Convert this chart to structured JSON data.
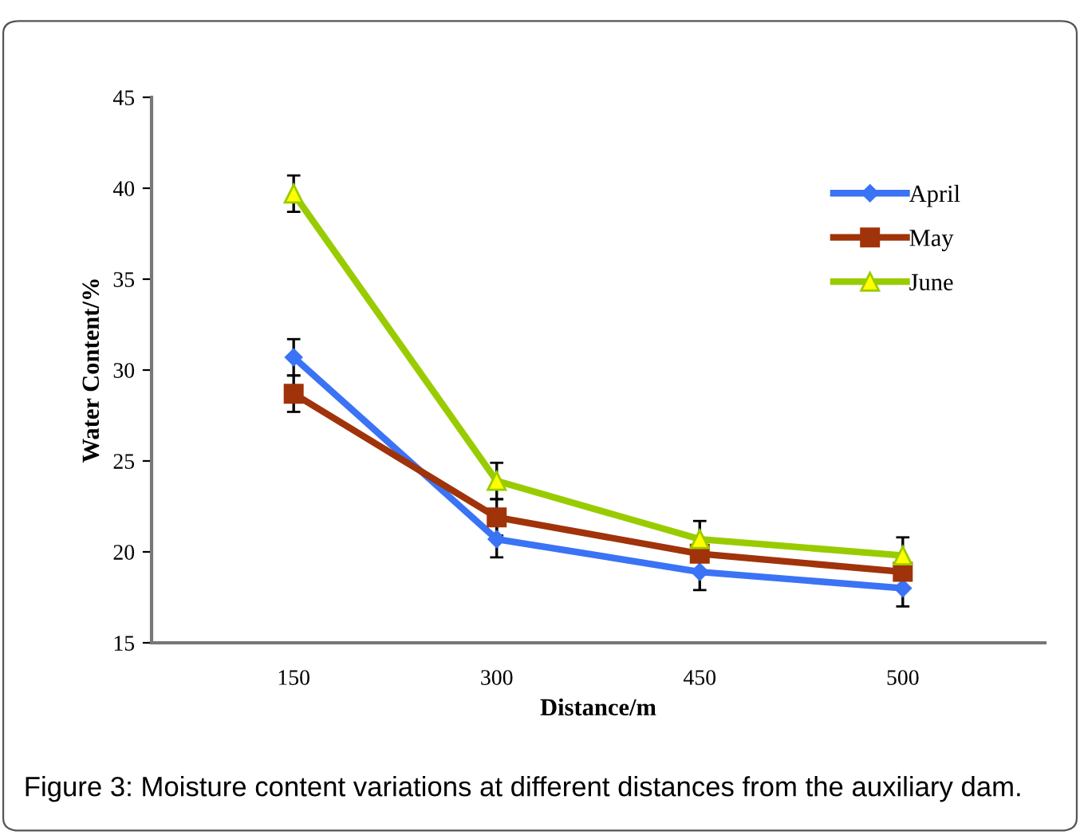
{
  "chart_data": {
    "type": "line",
    "xlabel": "Distance/m",
    "ylabel": "Water Content/%",
    "categories": [
      "150",
      "300",
      "450",
      "500"
    ],
    "series": [
      {
        "name": "April",
        "color": "#3b73f5",
        "marker": "diamond",
        "values": [
          30.7,
          20.7,
          18.9,
          18.0
        ],
        "errors": [
          1,
          1,
          1,
          1
        ]
      },
      {
        "name": "May",
        "color": "#a0330a",
        "marker": "square",
        "values": [
          28.7,
          21.9,
          19.9,
          18.9
        ],
        "errors": [
          1,
          1,
          null,
          null
        ]
      },
      {
        "name": "June",
        "color": "#99cc00",
        "marker": "triangle",
        "values": [
          39.7,
          23.9,
          20.7,
          19.8
        ],
        "errors": [
          1,
          1,
          1,
          1
        ]
      }
    ],
    "ylim": [
      15,
      45
    ],
    "yticks": [
      15,
      20,
      25,
      30,
      35,
      40,
      45
    ],
    "grid": false,
    "legend": "top right",
    "annotations": [
      "Figure 3: Moisture content variations at different distances from the auxiliary dam."
    ]
  }
}
